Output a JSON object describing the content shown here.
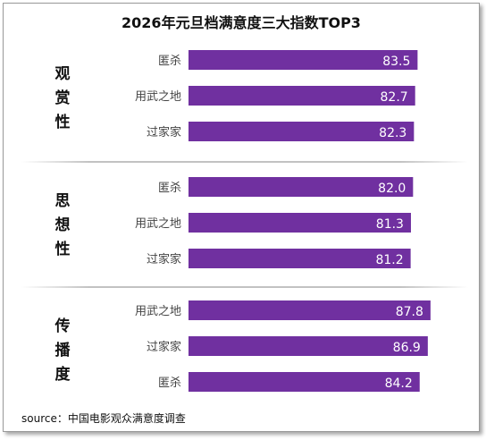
{
  "title": "2026年元旦档满意度三大指数TOP3",
  "source": "source：中国电影观众满意度调查",
  "bar_color": "#7030a0",
  "chart_data": [
    {
      "type": "bar",
      "group": "观赏性",
      "categories": [
        "匿杀",
        "用武之地",
        "过家家"
      ],
      "values": [
        83.5,
        82.7,
        82.3
      ]
    },
    {
      "type": "bar",
      "group": "思想性",
      "categories": [
        "匿杀",
        "用武之地",
        "过家家"
      ],
      "values": [
        82.0,
        81.3,
        81.2
      ]
    },
    {
      "type": "bar",
      "group": "传播度",
      "categories": [
        "用武之地",
        "过家家",
        "匿杀"
      ],
      "values": [
        87.8,
        86.9,
        84.2
      ]
    }
  ]
}
